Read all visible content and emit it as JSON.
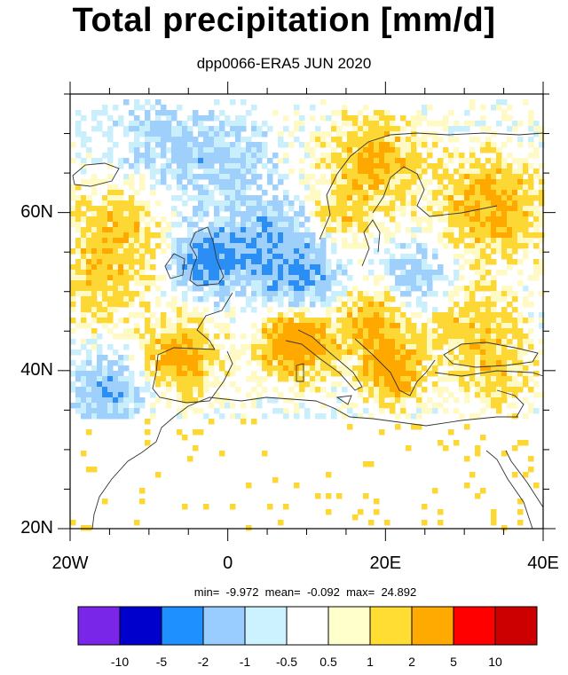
{
  "title": "Total precipitation [mm/d]",
  "subtitle": "dpp0066-ERA5 JUN 2020",
  "stats": "min=  -9.972  mean=  -0.092  max=  24.892",
  "map": {
    "lon_range": [
      -20,
      40
    ],
    "lat_range": [
      20,
      75
    ],
    "lon_ticks": [
      {
        "value": -20,
        "label": "20W"
      },
      {
        "value": 0,
        "label": "0"
      },
      {
        "value": 20,
        "label": "20E"
      },
      {
        "value": 40,
        "label": "40E"
      }
    ],
    "lat_ticks": [
      {
        "value": 20,
        "label": "20N"
      },
      {
        "value": 40,
        "label": "40N"
      },
      {
        "value": 60,
        "label": "60N"
      }
    ],
    "colors": {
      "coast": "#333333",
      "positive": [
        "#fff9c4",
        "#fdd835",
        "#ffa800",
        "#ff1a00"
      ],
      "negative": [
        "#c9eefc",
        "#9fd0fb",
        "#2b8ef5",
        "#0d4fd6"
      ]
    }
  },
  "colorbar": {
    "colors": [
      "#7a26e8",
      "#0000cc",
      "#1e90ff",
      "#99ccff",
      "#ccf2ff",
      "#ffffff",
      "#ffffcc",
      "#ffdd33",
      "#ffaa00",
      "#ff0000",
      "#cc0000"
    ],
    "labels": [
      "-10",
      "-5",
      "-2",
      "-1",
      "-0.5",
      "0.5",
      "1",
      "2",
      "5",
      "10"
    ]
  }
}
